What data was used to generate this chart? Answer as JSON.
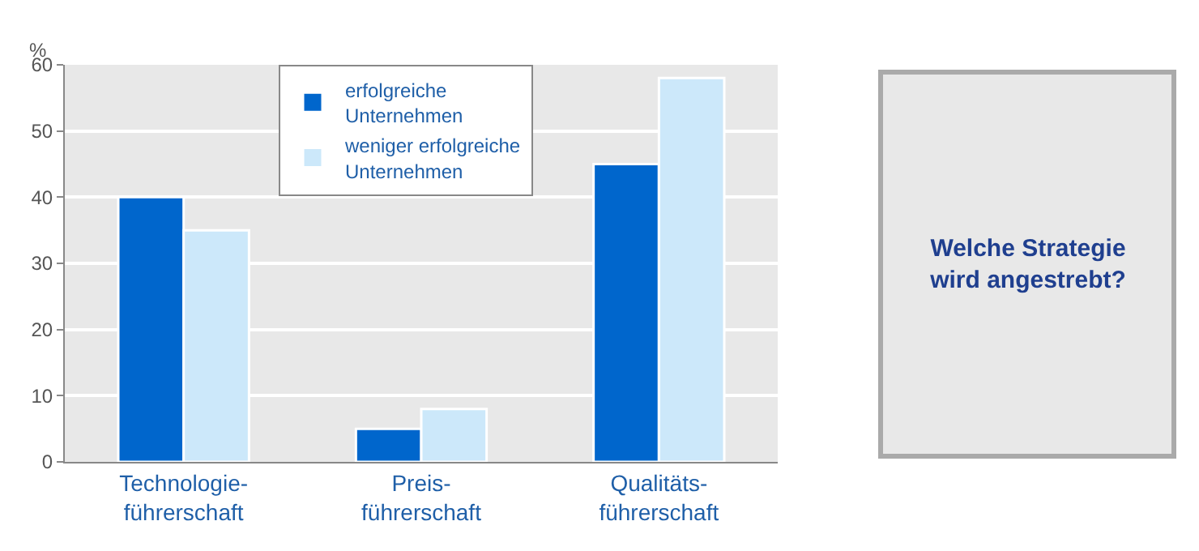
{
  "chart_data": {
    "type": "bar",
    "ylabel": "%",
    "categories": [
      "Technologie-\nführerschaft",
      "Preis-\nführerschaft",
      "Qualitäts-\nführerschaft"
    ],
    "series": [
      {
        "name": "erfolgreiche\nUnternehmen",
        "color": "#0066cc",
        "values": [
          40,
          5,
          45
        ]
      },
      {
        "name": "weniger erfolgreiche\nUnternehmen",
        "color": "#cce8fa",
        "values": [
          35,
          8,
          58
        ]
      }
    ],
    "ylim": [
      0,
      60
    ],
    "yticks": [
      0,
      10,
      20,
      30,
      40,
      50,
      60
    ],
    "grid": "y",
    "legend": "top",
    "annotations": [
      "Welche Strategie\nwird angestrebt?"
    ]
  }
}
